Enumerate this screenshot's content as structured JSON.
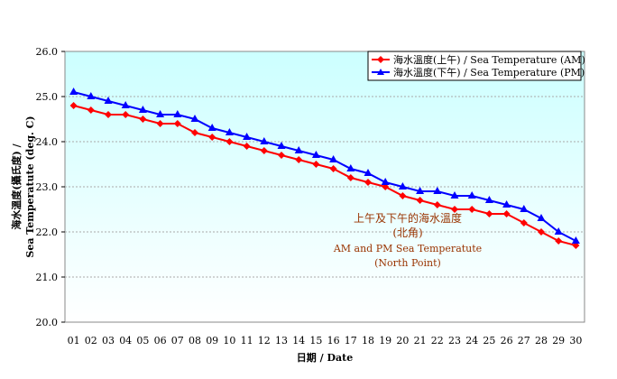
{
  "chart_data": {
    "type": "line",
    "categories": [
      "01",
      "02",
      "03",
      "04",
      "05",
      "06",
      "07",
      "08",
      "09",
      "10",
      "11",
      "12",
      "13",
      "14",
      "15",
      "16",
      "17",
      "18",
      "19",
      "20",
      "21",
      "22",
      "23",
      "24",
      "25",
      "26",
      "27",
      "28",
      "29",
      "30"
    ],
    "series": [
      {
        "name": "海水溫度(上午) / Sea Temperature (AM)",
        "color": "#ff0000",
        "marker": "diamond",
        "values": [
          24.8,
          24.7,
          24.6,
          24.6,
          24.5,
          24.4,
          24.4,
          24.2,
          24.1,
          24.0,
          23.9,
          23.8,
          23.7,
          23.6,
          23.5,
          23.4,
          23.2,
          23.1,
          23.0,
          22.8,
          22.7,
          22.6,
          22.5,
          22.5,
          22.4,
          22.4,
          22.2,
          22.0,
          21.8,
          21.7
        ]
      },
      {
        "name": "海水溫度(下午) / Sea Temperature (PM)",
        "color": "#0000ff",
        "marker": "triangle",
        "values": [
          25.1,
          25.0,
          24.9,
          24.8,
          24.7,
          24.6,
          24.6,
          24.5,
          24.3,
          24.2,
          24.1,
          24.0,
          23.9,
          23.8,
          23.7,
          23.6,
          23.4,
          23.3,
          23.1,
          23.0,
          22.9,
          22.9,
          22.8,
          22.8,
          22.7,
          22.6,
          22.5,
          22.3,
          22.0,
          21.8
        ]
      }
    ],
    "ylim": [
      20.0,
      26.0
    ],
    "yticks": [
      "20.0",
      "21.0",
      "22.0",
      "23.0",
      "24.0",
      "25.0",
      "26.0"
    ],
    "xlabel": "日期 / Date",
    "ylabel_lines": [
      "海水溫度(攝氏度) /",
      "Sea Temperatute (deg. C)"
    ],
    "annotation_lines": [
      "上午及下午的海水溫度",
      "(北角)",
      "AM and PM Sea Temperatute",
      "(North Point)"
    ],
    "annotation_color": "#993300",
    "grid": "horizontal dashed",
    "legend": "top-right",
    "background": "gradient cyan to white"
  }
}
